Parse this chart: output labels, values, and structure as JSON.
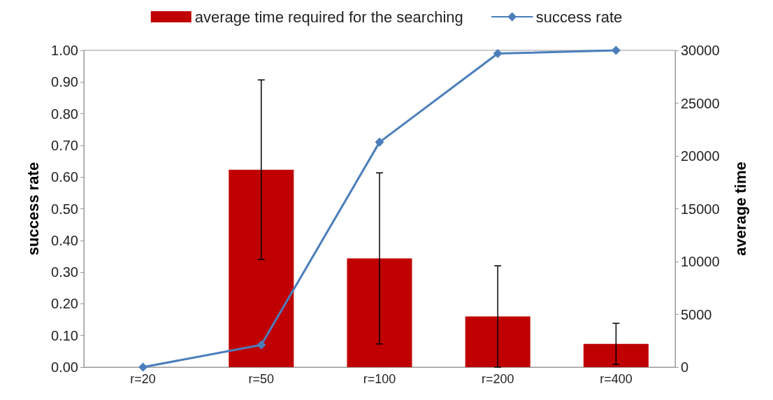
{
  "chart_data": {
    "type": "bar",
    "categories": [
      "r=20",
      "r=50",
      "r=100",
      "r=200",
      "r=400"
    ],
    "series": [
      {
        "name": "average time required for the searching",
        "axis": "y2",
        "color": "#c00000",
        "values": [
          0,
          18700,
          10300,
          4800,
          2200
        ],
        "errors": [
          null,
          8500,
          8100,
          4800,
          1950
        ]
      },
      {
        "name": "success rate",
        "type": "line",
        "color": "#4a7ebb",
        "values": [
          0.0,
          0.07,
          0.71,
          0.99,
          1.0
        ]
      }
    ],
    "ylabel": "success rate",
    "y2label": "average time",
    "ylim": [
      0,
      1
    ],
    "yticks": [
      {
        "value": 0,
        "label": "0.00"
      },
      {
        "value": 0.1,
        "label": "0.10"
      },
      {
        "value": 0.2,
        "label": "0.20"
      },
      {
        "value": 0.3,
        "label": "0.30"
      },
      {
        "value": 0.4,
        "label": "0.40"
      },
      {
        "value": 0.5,
        "label": "0.50"
      },
      {
        "value": 0.6,
        "label": "0.60"
      },
      {
        "value": 0.7,
        "label": "0.70"
      },
      {
        "value": 0.8,
        "label": "0.80"
      },
      {
        "value": 0.9,
        "label": "0.90"
      },
      {
        "value": 1,
        "label": "1.00"
      }
    ],
    "y2lim": [
      0,
      30000
    ],
    "y2ticks": [
      0,
      5000,
      10000,
      15000,
      20000,
      25000,
      30000
    ],
    "marker": "diamond",
    "line_style": "solid",
    "grid": false,
    "legend": "top"
  }
}
